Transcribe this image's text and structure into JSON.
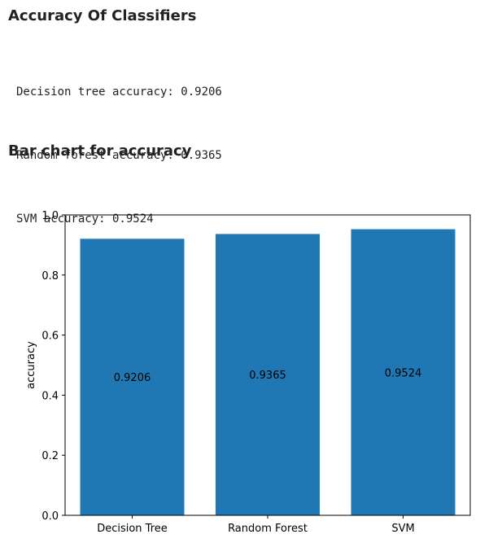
{
  "section1": {
    "title": "Accuracy Of Classifiers",
    "lines": [
      "Decision tree accuracy: 0.9206",
      "Random forest accuracy: 0.9365",
      "SVM accuracy: 0.9524"
    ]
  },
  "section2": {
    "title": "Bar chart for accuracy"
  },
  "chart_data": {
    "type": "bar",
    "categories": [
      "Decision Tree",
      "Random Forest",
      "SVM"
    ],
    "values": [
      0.9206,
      0.9365,
      0.9524
    ],
    "data_labels": [
      "0.9206",
      "0.9365",
      "0.9524"
    ],
    "title": "",
    "xlabel": "",
    "ylabel": "accuracy",
    "ylim": [
      0,
      1.0
    ],
    "yticks": [
      "0.0",
      "0.2",
      "0.4",
      "0.6",
      "0.8",
      "1.0"
    ],
    "bar_color": "#1f77b4",
    "grid": false
  }
}
